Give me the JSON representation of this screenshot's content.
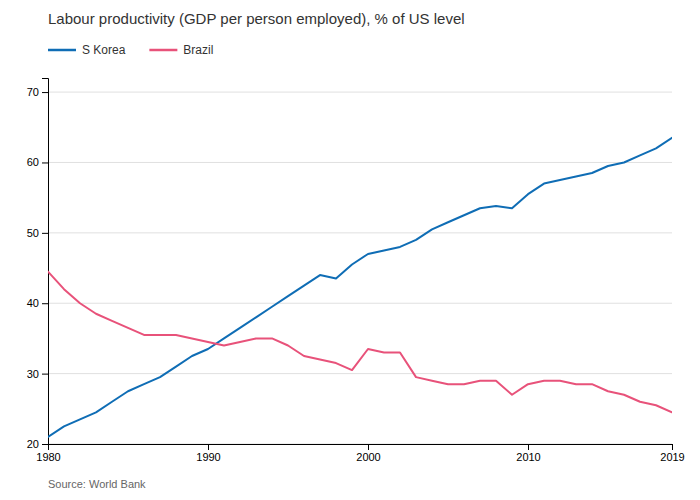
{
  "chart_data": {
    "type": "line",
    "title": "Labour productivity (GDP per person employed), % of US level",
    "annotations": [
      "Source: World Bank"
    ],
    "x": [
      1980,
      1981,
      1982,
      1983,
      1984,
      1985,
      1986,
      1987,
      1988,
      1989,
      1990,
      1991,
      1992,
      1993,
      1994,
      1995,
      1996,
      1997,
      1998,
      1999,
      2000,
      2001,
      2002,
      2003,
      2004,
      2005,
      2006,
      2007,
      2008,
      2009,
      2010,
      2011,
      2012,
      2013,
      2014,
      2015,
      2016,
      2017,
      2018,
      2019
    ],
    "series": [
      {
        "name": "S Korea",
        "color": "#0f6db5",
        "values": [
          21.0,
          22.5,
          23.5,
          24.5,
          26.0,
          27.5,
          28.5,
          29.5,
          31.0,
          32.5,
          33.5,
          35.0,
          36.5,
          38.0,
          39.5,
          41.0,
          42.5,
          44.0,
          43.5,
          45.5,
          47.0,
          47.5,
          48.0,
          49.0,
          50.5,
          51.5,
          52.5,
          53.5,
          53.8,
          53.5,
          55.5,
          57.0,
          57.5,
          58.0,
          58.5,
          59.5,
          60.0,
          61.0,
          62.0,
          63.5
        ]
      },
      {
        "name": "Brazil",
        "color": "#e8527a",
        "values": [
          44.5,
          42.0,
          40.0,
          38.5,
          37.5,
          36.5,
          35.5,
          35.5,
          35.5,
          35.0,
          34.5,
          34.0,
          34.5,
          35.0,
          35.0,
          34.0,
          32.5,
          32.0,
          31.5,
          30.5,
          33.5,
          33.0,
          33.0,
          29.5,
          29.0,
          28.5,
          28.5,
          29.0,
          29.0,
          27.0,
          28.5,
          29.0,
          29.0,
          28.5,
          28.5,
          27.5,
          27.0,
          26.0,
          25.5,
          24.5
        ]
      }
    ],
    "xlim": [
      1980,
      2019
    ],
    "xticks": [
      1980,
      1990,
      2000,
      2010,
      2019
    ],
    "ylim": [
      20,
      72
    ],
    "yticks": [
      20,
      30,
      40,
      50,
      60,
      70
    ],
    "grid": true,
    "legend": "top-left"
  }
}
